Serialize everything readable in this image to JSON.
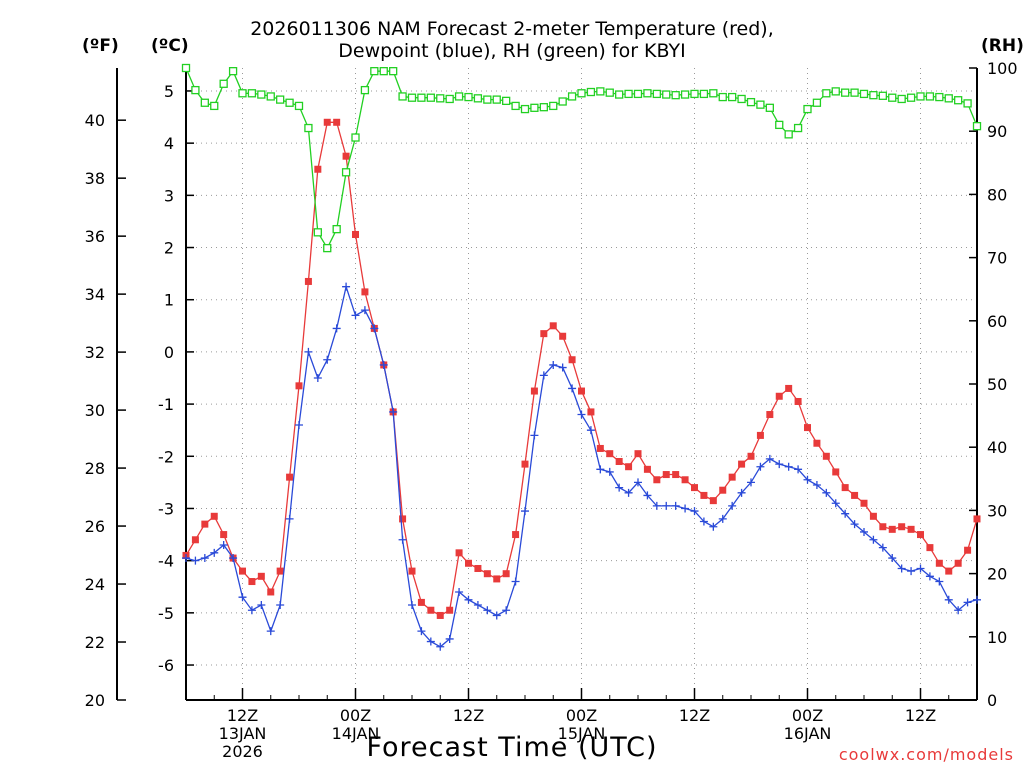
{
  "chart_data": {
    "type": "line",
    "title_line1": "2026011306 NAM Forecast 2-meter Temperature (red),",
    "title_line2": "Dewpoint (blue), RH (green) for KBYI",
    "xlabel": "Forecast Time (UTC)",
    "credit": "coolwx.com/models",
    "y_left_outer_unit": "(ºF)",
    "y_left_inner_unit": "(ºC)",
    "y_right_unit": "(RH)",
    "xlim": [
      0,
      84
    ],
    "x_ticks": [
      {
        "x": 6,
        "lines": [
          "12Z",
          "13JAN",
          "2026"
        ]
      },
      {
        "x": 18,
        "lines": [
          "00Z",
          "14JAN"
        ]
      },
      {
        "x": 30,
        "lines": [
          "12Z"
        ]
      },
      {
        "x": 42,
        "lines": [
          "00Z",
          "15JAN"
        ]
      },
      {
        "x": 54,
        "lines": [
          "12Z"
        ]
      },
      {
        "x": 66,
        "lines": [
          "00Z",
          "16JAN"
        ]
      },
      {
        "x": 78,
        "lines": [
          "12Z"
        ]
      }
    ],
    "y_axes": {
      "fahrenheit": {
        "range": [
          20,
          41.8
        ],
        "ticks": [
          20,
          22,
          24,
          26,
          28,
          30,
          32,
          34,
          36,
          38,
          40
        ]
      },
      "celsius": {
        "range": [
          -6.67,
          5.44
        ],
        "ticks": [
          -6,
          -5,
          -4,
          -3,
          -2,
          -1,
          0,
          1,
          2,
          3,
          4,
          5
        ]
      },
      "rh": {
        "range": [
          0,
          100
        ],
        "ticks": [
          0,
          10,
          20,
          30,
          40,
          50,
          60,
          70,
          80,
          90,
          100
        ]
      }
    },
    "grid": true,
    "series": [
      {
        "name": "2-meter Temperature",
        "color": "#e83a3a",
        "axis": "celsius",
        "marker": "filled-square",
        "x": [
          0,
          1,
          2,
          3,
          4,
          5,
          6,
          7,
          8,
          9,
          10,
          11,
          12,
          13,
          14,
          15,
          16,
          17,
          18,
          19,
          20,
          21,
          22,
          23,
          24,
          25,
          26,
          27,
          28,
          29,
          30,
          31,
          32,
          33,
          34,
          35,
          36,
          37,
          38,
          39,
          40,
          41,
          42,
          43,
          44,
          45,
          46,
          47,
          48,
          49,
          50,
          51,
          52,
          53,
          54,
          55,
          56,
          57,
          58,
          59,
          60,
          61,
          62,
          63,
          64,
          65,
          66,
          67,
          68,
          69,
          70,
          71,
          72,
          73,
          74,
          75,
          76,
          77,
          78,
          79,
          80,
          81,
          82,
          83,
          84
        ],
        "values": [
          -3.9,
          -3.6,
          -3.3,
          -3.15,
          -3.5,
          -3.95,
          -4.2,
          -4.4,
          -4.3,
          -4.6,
          -4.2,
          -2.4,
          -0.65,
          1.35,
          3.5,
          4.4,
          4.4,
          3.75,
          2.25,
          1.15,
          0.45,
          -0.25,
          -1.15,
          -3.2,
          -4.2,
          -4.8,
          -4.95,
          -5.05,
          -4.95,
          -3.85,
          -4.05,
          -4.15,
          -4.25,
          -4.35,
          -4.25,
          -3.5,
          -2.15,
          -0.75,
          0.35,
          0.5,
          0.3,
          -0.15,
          -0.75,
          -1.15,
          -1.85,
          -1.95,
          -2.1,
          -2.2,
          -1.95,
          -2.25,
          -2.45,
          -2.35,
          -2.35,
          -2.45,
          -2.6,
          -2.75,
          -2.85,
          -2.65,
          -2.4,
          -2.15,
          -2.0,
          -1.6,
          -1.2,
          -0.85,
          -0.7,
          -0.95,
          -1.45,
          -1.75,
          -2.0,
          -2.3,
          -2.6,
          -2.75,
          -2.9,
          -3.15,
          -3.35,
          -3.4,
          -3.35,
          -3.4,
          -3.5,
          -3.75,
          -4.05,
          -4.2,
          -4.05,
          -3.8,
          -3.2
        ]
      },
      {
        "name": "Dewpoint",
        "color": "#2a4ad8",
        "axis": "celsius",
        "marker": "plus",
        "x": [
          0,
          1,
          2,
          3,
          4,
          5,
          6,
          7,
          8,
          9,
          10,
          11,
          12,
          13,
          14,
          15,
          16,
          17,
          18,
          19,
          20,
          21,
          22,
          23,
          24,
          25,
          26,
          27,
          28,
          29,
          30,
          31,
          32,
          33,
          34,
          35,
          36,
          37,
          38,
          39,
          40,
          41,
          42,
          43,
          44,
          45,
          46,
          47,
          48,
          49,
          50,
          51,
          52,
          53,
          54,
          55,
          56,
          57,
          58,
          59,
          60,
          61,
          62,
          63,
          64,
          65,
          66,
          67,
          68,
          69,
          70,
          71,
          72,
          73,
          74,
          75,
          76,
          77,
          78,
          79,
          80,
          81,
          82,
          83,
          84
        ],
        "values": [
          -3.95,
          -4.0,
          -3.95,
          -3.85,
          -3.7,
          -3.95,
          -4.7,
          -4.95,
          -4.85,
          -5.35,
          -4.85,
          -3.2,
          -1.4,
          0.0,
          -0.5,
          -0.15,
          0.45,
          1.25,
          0.7,
          0.8,
          0.45,
          -0.25,
          -1.15,
          -3.6,
          -4.85,
          -5.35,
          -5.55,
          -5.65,
          -5.5,
          -4.6,
          -4.75,
          -4.85,
          -4.95,
          -5.05,
          -4.95,
          -4.4,
          -3.05,
          -1.6,
          -0.45,
          -0.25,
          -0.3,
          -0.7,
          -1.2,
          -1.5,
          -2.25,
          -2.3,
          -2.6,
          -2.7,
          -2.5,
          -2.75,
          -2.95,
          -2.95,
          -2.95,
          -3.0,
          -3.05,
          -3.25,
          -3.35,
          -3.2,
          -2.95,
          -2.7,
          -2.5,
          -2.2,
          -2.05,
          -2.15,
          -2.2,
          -2.25,
          -2.45,
          -2.55,
          -2.7,
          -2.9,
          -3.1,
          -3.3,
          -3.45,
          -3.6,
          -3.75,
          -3.95,
          -4.15,
          -4.2,
          -4.15,
          -4.3,
          -4.4,
          -4.75,
          -4.95,
          -4.8,
          -4.75
        ]
      },
      {
        "name": "RH",
        "color": "#22d022",
        "axis": "rh",
        "marker": "open-square",
        "x": [
          0,
          1,
          2,
          3,
          4,
          5,
          6,
          7,
          8,
          9,
          10,
          11,
          12,
          13,
          14,
          15,
          16,
          17,
          18,
          19,
          20,
          21,
          22,
          23,
          24,
          25,
          26,
          27,
          28,
          29,
          30,
          31,
          32,
          33,
          34,
          35,
          36,
          37,
          38,
          39,
          40,
          41,
          42,
          43,
          44,
          45,
          46,
          47,
          48,
          49,
          50,
          51,
          52,
          53,
          54,
          55,
          56,
          57,
          58,
          59,
          60,
          61,
          62,
          63,
          64,
          65,
          66,
          67,
          68,
          69,
          70,
          71,
          72,
          73,
          74,
          75,
          76,
          77,
          78,
          79,
          80,
          81,
          82,
          83,
          84
        ],
        "values": [
          100,
          96.5,
          94.5,
          94.0,
          97.5,
          99.5,
          96.0,
          96.0,
          95.8,
          95.5,
          95.0,
          94.5,
          94.0,
          90.5,
          74.0,
          71.5,
          74.5,
          83.5,
          89.0,
          96.5,
          99.5,
          99.5,
          99.5,
          95.5,
          95.3,
          95.3,
          95.3,
          95.2,
          95.1,
          95.5,
          95.4,
          95.2,
          95.0,
          95.0,
          94.8,
          94.0,
          93.5,
          93.7,
          93.8,
          94.0,
          94.7,
          95.5,
          96.0,
          96.2,
          96.3,
          96.1,
          95.8,
          95.9,
          95.9,
          96.0,
          95.9,
          95.8,
          95.7,
          95.8,
          95.9,
          95.9,
          96.0,
          95.4,
          95.4,
          95.1,
          94.6,
          94.2,
          93.7,
          91.0,
          89.5,
          90.5,
          93.5,
          94.5,
          96.0,
          96.3,
          96.1,
          96.1,
          95.9,
          95.7,
          95.6,
          95.3,
          95.1,
          95.3,
          95.5,
          95.5,
          95.4,
          95.2,
          94.9,
          94.4,
          90.8
        ]
      }
    ]
  }
}
